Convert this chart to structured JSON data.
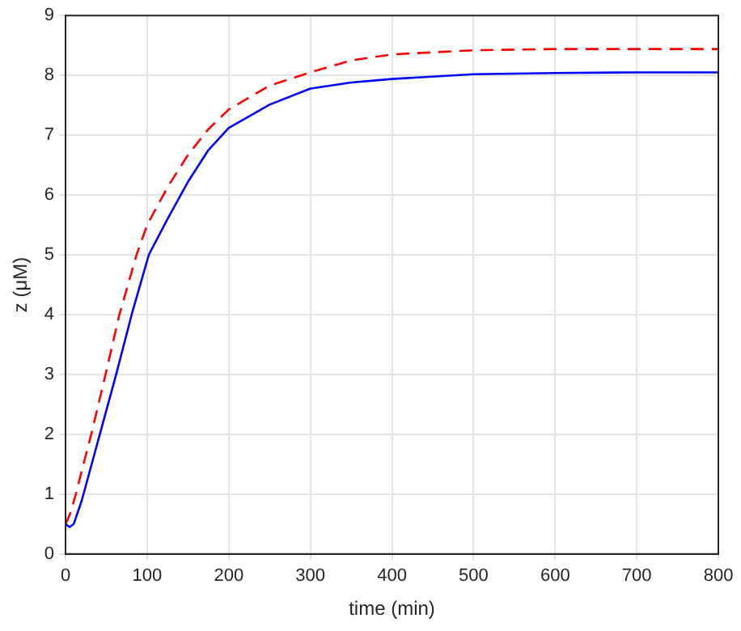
{
  "chart_data": {
    "type": "line",
    "xlabel": "time (min)",
    "ylabel": "z (μM)",
    "xlim": [
      0,
      800
    ],
    "ylim": [
      0,
      9
    ],
    "xticks": [
      0,
      100,
      200,
      300,
      400,
      500,
      600,
      700,
      800
    ],
    "yticks": [
      0,
      1,
      2,
      3,
      4,
      5,
      6,
      7,
      8,
      9
    ],
    "grid": true,
    "legend": false,
    "marker": "none",
    "series": [
      {
        "color": "#0000ff",
        "line_style": "solid",
        "x": [
          0,
          5,
          10,
          20,
          30,
          42,
          62,
          82,
          102,
          125,
          150,
          175,
          200,
          250,
          300,
          350,
          400,
          500,
          600,
          700,
          800
        ],
        "values": [
          0.5,
          0.45,
          0.5,
          0.9,
          1.4,
          2,
          3,
          4.05,
          5,
          5.6,
          6.22,
          6.75,
          7.12,
          7.51,
          7.78,
          7.88,
          7.94,
          8.02,
          8.04,
          8.05,
          8.05
        ]
      },
      {
        "color": "#ff0000",
        "line_style": "dashed",
        "x": [
          0,
          5,
          12.6,
          20,
          31.5,
          49,
          66,
          87,
          100,
          125,
          150,
          175,
          200,
          250,
          300,
          350,
          400,
          500,
          600,
          800
        ],
        "values": [
          0.5,
          0.65,
          1,
          1.4,
          2,
          3,
          4,
          5,
          5.5,
          6.13,
          6.67,
          7.1,
          7.43,
          7.83,
          8.05,
          8.25,
          8.35,
          8.42,
          8.44,
          8.44
        ]
      }
    ]
  }
}
